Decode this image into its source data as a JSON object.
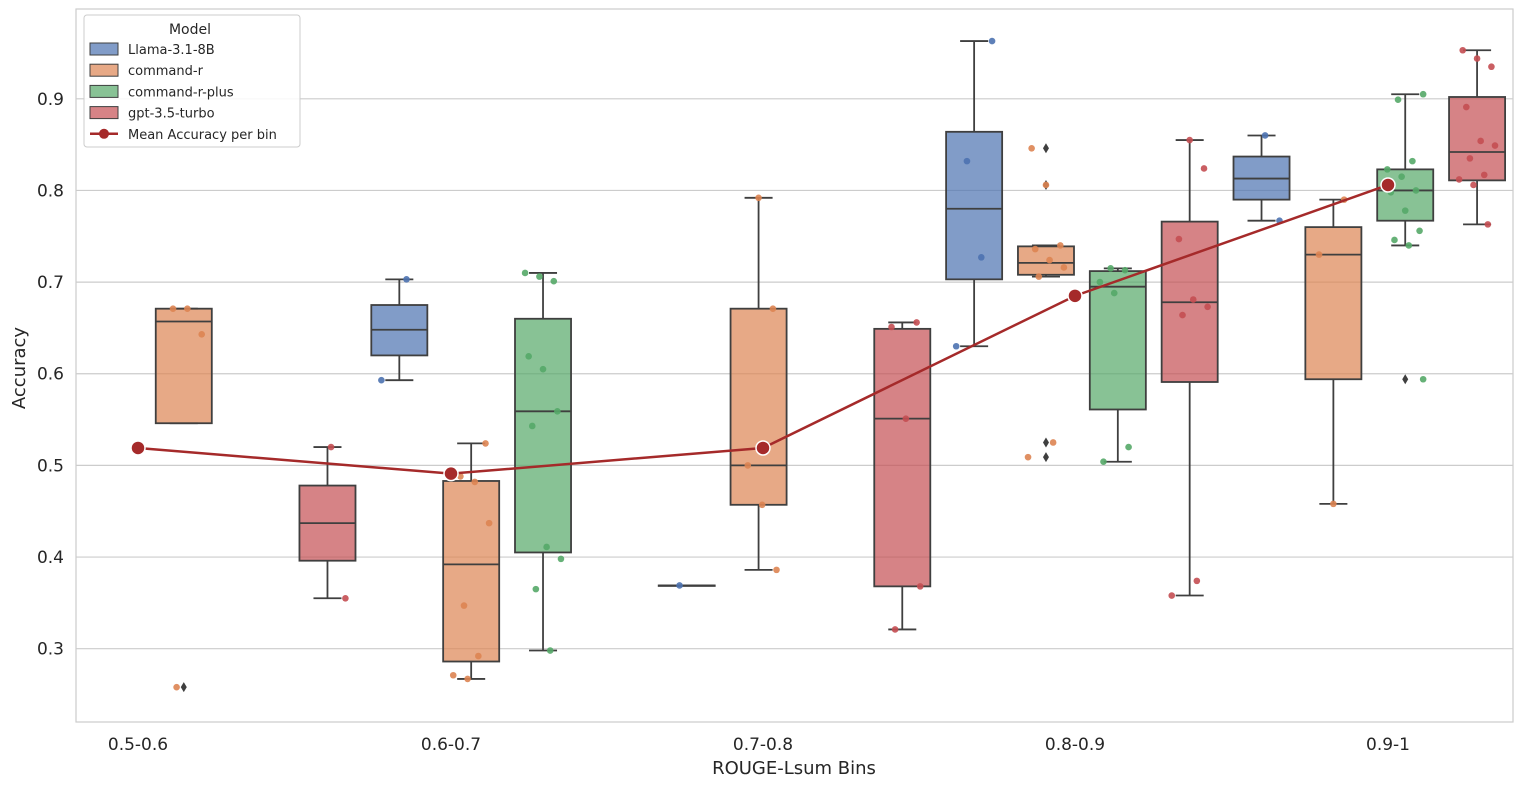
{
  "chart_data": {
    "type": "box",
    "xlabel": "ROUGE-Lsum Bins",
    "ylabel": "Accuracy",
    "ylim": [
      0.22,
      0.998
    ],
    "yticks": [
      0.3,
      0.4,
      0.5,
      0.6,
      0.7,
      0.8,
      0.9
    ],
    "ytick_labels": [
      "0.3",
      "0.4",
      "0.5",
      "0.6",
      "0.7",
      "0.8",
      "0.9"
    ],
    "categories": [
      "0.5-0.6",
      "0.6-0.7",
      "0.7-0.8",
      "0.8-0.9",
      "0.9-1"
    ],
    "grid": "horizontal",
    "legend": {
      "title": "Model",
      "position": "top-left",
      "mean_label": "Mean Accuracy per bin"
    },
    "series": [
      {
        "name": "Llama-3.1-8B",
        "color": "#4C72B0",
        "boxes": [
          null,
          {
            "whislo": 0.593,
            "q1": 0.62,
            "med": 0.648,
            "q3": 0.675,
            "whishi": 0.703,
            "fliers": [],
            "points": [
              0.703,
              0.593
            ]
          },
          {
            "whislo": 0.369,
            "q1": 0.369,
            "med": 0.369,
            "q3": 0.369,
            "whishi": 0.369,
            "fliers": [],
            "points": [
              0.369
            ]
          },
          {
            "whislo": 0.63,
            "q1": 0.703,
            "med": 0.78,
            "q3": 0.864,
            "whishi": 0.963,
            "fliers": [],
            "points": [
              0.963,
              0.832,
              0.727,
              0.63
            ]
          },
          {
            "whislo": 0.767,
            "q1": 0.79,
            "med": 0.813,
            "q3": 0.837,
            "whishi": 0.86,
            "fliers": [],
            "points": [
              0.86,
              0.767
            ]
          }
        ]
      },
      {
        "name": "command-r",
        "color": "#DD8452",
        "boxes": [
          {
            "whislo": 0.546,
            "q1": 0.546,
            "med": 0.657,
            "q3": 0.671,
            "whishi": 0.671,
            "fliers": [
              0.258
            ],
            "points": [
              0.671,
              0.671,
              0.643,
              0.258
            ]
          },
          {
            "whislo": 0.267,
            "q1": 0.286,
            "med": 0.392,
            "q3": 0.483,
            "whishi": 0.524,
            "fliers": [],
            "points": [
              0.524,
              0.488,
              0.482,
              0.437,
              0.347,
              0.292,
              0.271,
              0.267
            ]
          },
          {
            "whislo": 0.386,
            "q1": 0.457,
            "med": 0.5,
            "q3": 0.671,
            "whishi": 0.792,
            "fliers": [],
            "points": [
              0.792,
              0.671,
              0.5,
              0.457,
              0.386
            ]
          },
          {
            "whislo": 0.706,
            "q1": 0.708,
            "med": 0.721,
            "q3": 0.739,
            "whishi": 0.74,
            "fliers": [
              0.846,
              0.806,
              0.525,
              0.509
            ],
            "points": [
              0.846,
              0.806,
              0.74,
              0.736,
              0.724,
              0.716,
              0.706,
              0.525,
              0.509
            ]
          },
          {
            "whislo": 0.458,
            "q1": 0.594,
            "med": 0.73,
            "q3": 0.76,
            "whishi": 0.79,
            "fliers": [],
            "points": [
              0.79,
              0.73,
              0.458
            ]
          }
        ]
      },
      {
        "name": "command-r-plus",
        "color": "#55A868",
        "boxes": [
          null,
          {
            "whislo": 0.298,
            "q1": 0.405,
            "med": 0.559,
            "q3": 0.66,
            "whishi": 0.71,
            "fliers": [],
            "points": [
              0.71,
              0.706,
              0.701,
              0.619,
              0.605,
              0.559,
              0.543,
              0.411,
              0.398,
              0.365,
              0.298
            ]
          },
          null,
          {
            "whislo": 0.504,
            "q1": 0.561,
            "med": 0.695,
            "q3": 0.712,
            "whishi": 0.715,
            "fliers": [],
            "points": [
              0.715,
              0.713,
              0.7,
              0.688,
              0.52,
              0.504
            ]
          },
          {
            "whislo": 0.74,
            "q1": 0.767,
            "med": 0.8,
            "q3": 0.823,
            "whishi": 0.905,
            "fliers": [
              0.594
            ],
            "points": [
              0.905,
              0.899,
              0.832,
              0.823,
              0.815,
              0.8,
              0.798,
              0.778,
              0.756,
              0.746,
              0.74,
              0.594
            ]
          }
        ]
      },
      {
        "name": "gpt-3.5-turbo",
        "color": "#C44E52",
        "boxes": [
          {
            "whislo": 0.355,
            "q1": 0.396,
            "med": 0.437,
            "q3": 0.478,
            "whishi": 0.52,
            "fliers": [],
            "points": [
              0.52,
              0.355
            ]
          },
          null,
          {
            "whislo": 0.321,
            "q1": 0.368,
            "med": 0.551,
            "q3": 0.649,
            "whishi": 0.656,
            "fliers": [],
            "points": [
              0.656,
              0.651,
              0.551,
              0.368,
              0.321
            ]
          },
          {
            "whislo": 0.358,
            "q1": 0.591,
            "med": 0.678,
            "q3": 0.766,
            "whishi": 0.855,
            "fliers": [],
            "points": [
              0.855,
              0.824,
              0.747,
              0.681,
              0.673,
              0.664,
              0.374,
              0.358
            ]
          },
          {
            "whislo": 0.763,
            "q1": 0.811,
            "med": 0.842,
            "q3": 0.902,
            "whishi": 0.953,
            "fliers": [],
            "points": [
              0.953,
              0.944,
              0.935,
              0.891,
              0.854,
              0.849,
              0.835,
              0.817,
              0.812,
              0.806,
              0.763
            ]
          }
        ]
      }
    ],
    "mean_line": {
      "name": "Mean Accuracy per bin",
      "color": "#A52A2A",
      "values": [
        0.519,
        0.491,
        0.519,
        0.685,
        0.806
      ]
    }
  }
}
